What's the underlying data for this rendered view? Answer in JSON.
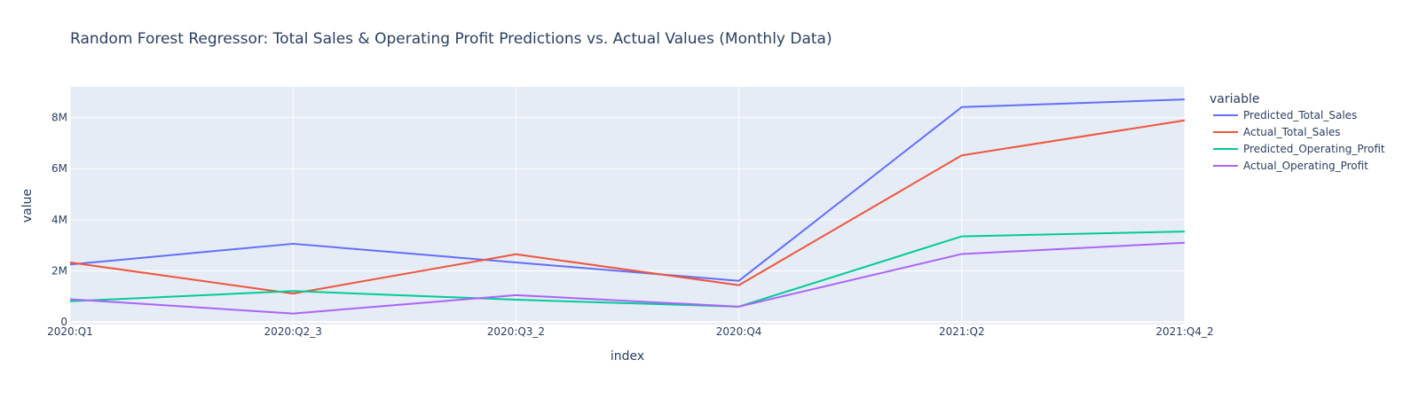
{
  "chart_data": {
    "type": "line",
    "title": "Random Forest Regressor: Total Sales & Operating Profit Predictions vs. Actual Values (Monthly Data)",
    "xlabel": "index",
    "ylabel": "value",
    "categories": [
      "2020:Q1",
      "2020:Q2_3",
      "2020:Q3_2",
      "2020:Q4",
      "2021:Q2",
      "2021:Q4_2"
    ],
    "ylim": [
      -100000,
      9200000
    ],
    "yticks": [
      {
        "value": 0,
        "label": "0"
      },
      {
        "value": 2000000,
        "label": "2M"
      },
      {
        "value": 4000000,
        "label": "4M"
      },
      {
        "value": 6000000,
        "label": "6M"
      },
      {
        "value": 8000000,
        "label": "8M"
      }
    ],
    "grid": true,
    "legend": {
      "title": "variable",
      "placement": "right"
    },
    "series": [
      {
        "name": "Predicted_Total_Sales",
        "color": "#636efa",
        "values": [
          2250000,
          3060000,
          2330000,
          1610000,
          8410000,
          8710000
        ]
      },
      {
        "name": "Actual_Total_Sales",
        "color": "#ef553b",
        "values": [
          2330000,
          1110000,
          2650000,
          1440000,
          6520000,
          7890000
        ]
      },
      {
        "name": "Predicted_Operating_Profit",
        "color": "#00cc96",
        "values": [
          810000,
          1210000,
          870000,
          600000,
          3350000,
          3540000
        ]
      },
      {
        "name": "Actual_Operating_Profit",
        "color": "#ab63fa",
        "values": [
          890000,
          330000,
          1050000,
          600000,
          2660000,
          3100000
        ]
      }
    ]
  }
}
